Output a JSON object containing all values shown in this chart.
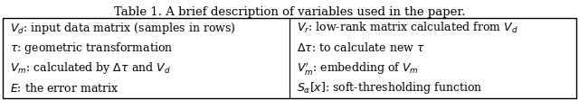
{
  "title": "Table 1. A brief description of variables used in the paper.",
  "title_fontsize": 9.5,
  "rows": [
    [
      "$V_d$: input data matrix (samples in rows)",
      "$V_r$: low-rank matrix calculated from $V_d$"
    ],
    [
      "$\\tau$: geometric transformation",
      "$\\Delta\\tau$: to calculate new $\\tau$"
    ],
    [
      "$V_m$: calculated by $\\Delta\\tau$ and $V_d$",
      "$V_m'$: embedding of $V_m$"
    ],
    [
      "$E$: the error matrix",
      "$S_{\\alpha}[x]$: soft-thresholding function"
    ]
  ],
  "text_fontsize": 9.0,
  "bg_color": "#ffffff",
  "border_color": "#000000",
  "text_color": "#000000",
  "figsize": [
    6.4,
    1.11
  ],
  "dpi": 100
}
